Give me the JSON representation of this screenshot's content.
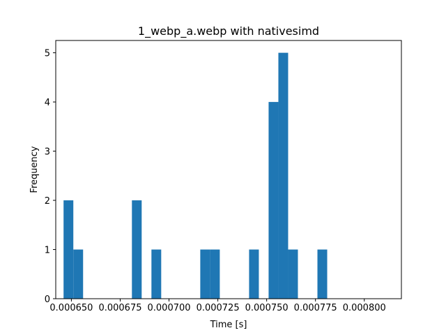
{
  "chart_data": {
    "type": "bar",
    "title": "1_webp_a.webp with nativesimd",
    "xlabel": "Time [s]",
    "ylabel": "Frequency",
    "xlim": [
      0.000642,
      0.000819
    ],
    "ylim": [
      0,
      5.25
    ],
    "grid": false,
    "color": "#1f77b4",
    "x_ticks": [
      {
        "value": 0.00065,
        "label": "0.000650"
      },
      {
        "value": 0.000675,
        "label": "0.000675"
      },
      {
        "value": 0.0007,
        "label": "0.000700"
      },
      {
        "value": 0.000725,
        "label": "0.000725"
      },
      {
        "value": 0.00075,
        "label": "0.000750"
      },
      {
        "value": 0.000775,
        "label": "0.000775"
      },
      {
        "value": 0.0008,
        "label": "0.000800"
      }
    ],
    "y_ticks": [
      {
        "value": 0,
        "label": "0"
      },
      {
        "value": 1,
        "label": "1"
      },
      {
        "value": 2,
        "label": "2"
      },
      {
        "value": 3,
        "label": "3"
      },
      {
        "value": 4,
        "label": "4"
      },
      {
        "value": 5,
        "label": "5"
      }
    ],
    "bins": [
      {
        "x0": 0.000646,
        "x1": 0.000651,
        "count": 2
      },
      {
        "x0": 0.000651,
        "x1": 0.000656,
        "count": 1
      },
      {
        "x0": 0.000681,
        "x1": 0.000686,
        "count": 2
      },
      {
        "x0": 0.000691,
        "x1": 0.000696,
        "count": 1
      },
      {
        "x0": 0.000716,
        "x1": 0.000721,
        "count": 1
      },
      {
        "x0": 0.000721,
        "x1": 0.000726,
        "count": 1
      },
      {
        "x0": 0.000741,
        "x1": 0.000746,
        "count": 1
      },
      {
        "x0": 0.000751,
        "x1": 0.000756,
        "count": 4
      },
      {
        "x0": 0.000756,
        "x1": 0.000761,
        "count": 5
      },
      {
        "x0": 0.000761,
        "x1": 0.000766,
        "count": 1
      },
      {
        "x0": 0.000776,
        "x1": 0.000781,
        "count": 1
      }
    ]
  }
}
